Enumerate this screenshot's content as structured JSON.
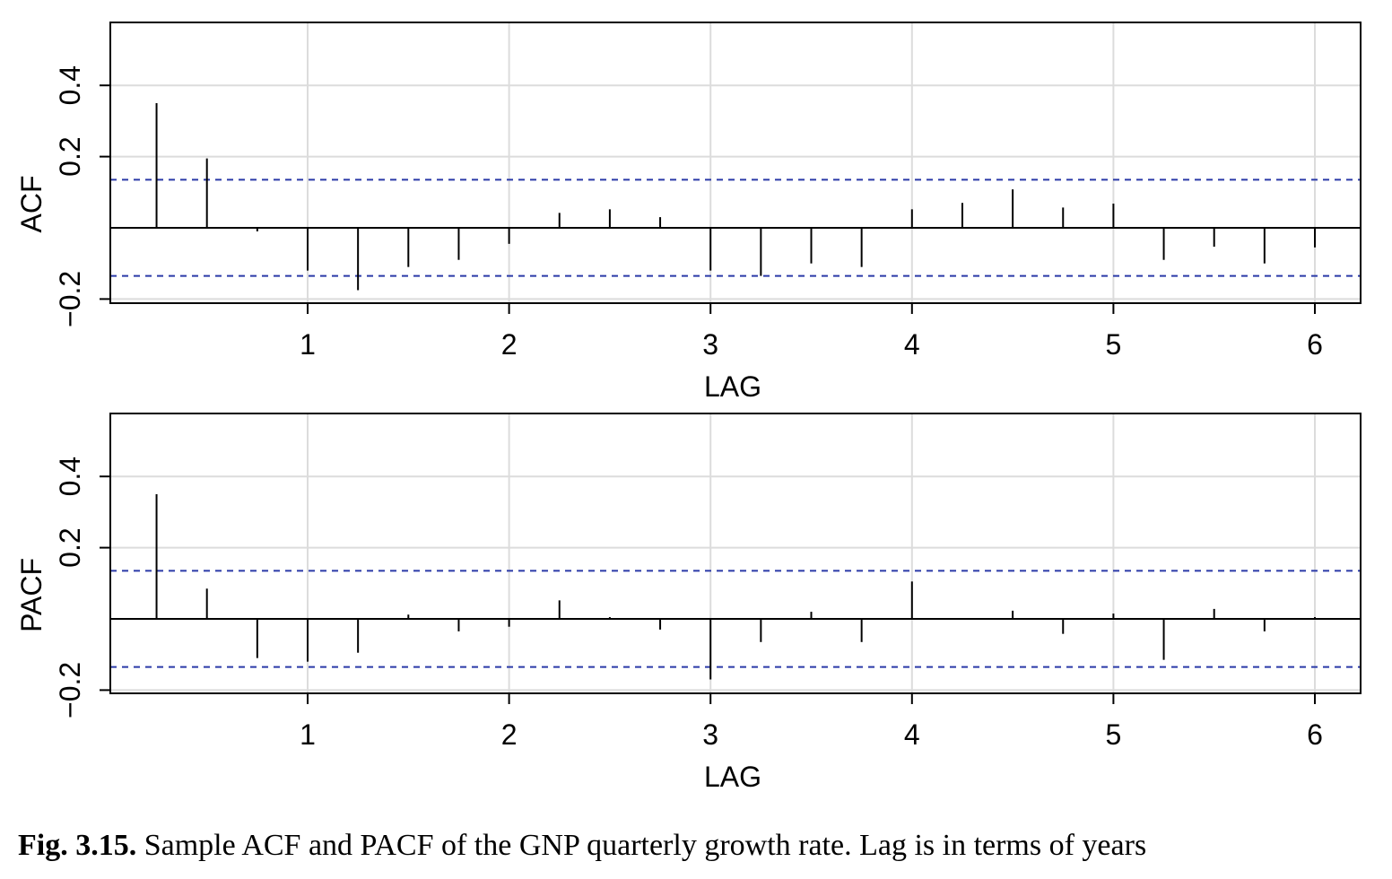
{
  "caption": {
    "label": "Fig. 3.15.",
    "text": "Sample ACF and PACF of the GNP quarterly growth rate. Lag is in terms of years"
  },
  "chart_data": [
    {
      "type": "bar",
      "subtype": "lollipop-spikes",
      "ylabel": "ACF",
      "xlabel": "LAG",
      "xlim": [
        0,
        6.2
      ],
      "ylim": [
        -0.2,
        0.4
      ],
      "x_ticks": [
        1,
        2,
        3,
        4,
        5,
        6
      ],
      "y_ticks": [
        -0.2,
        0.2,
        0.4
      ],
      "y_tick_labels": [
        "−0.2",
        "0.2",
        "0.4"
      ],
      "grid": true,
      "confidence_bound": 0.135,
      "colors": {
        "spike": "#000000",
        "bound": "#2b3aa8",
        "grid": "#dcdcdc"
      },
      "x": [
        0.25,
        0.5,
        0.75,
        1.0,
        1.25,
        1.5,
        1.75,
        2.0,
        2.25,
        2.5,
        2.75,
        3.0,
        3.25,
        3.5,
        3.75,
        4.0,
        4.25,
        4.5,
        4.75,
        5.0,
        5.25,
        5.5,
        5.75,
        6.0
      ],
      "values": [
        0.35,
        0.195,
        -0.01,
        -0.12,
        -0.175,
        -0.11,
        -0.09,
        -0.045,
        0.042,
        0.052,
        0.03,
        -0.12,
        -0.135,
        -0.1,
        -0.11,
        0.052,
        0.07,
        0.108,
        0.057,
        0.068,
        -0.09,
        -0.053,
        -0.1,
        -0.055
      ]
    },
    {
      "type": "bar",
      "subtype": "lollipop-spikes",
      "ylabel": "PACF",
      "xlabel": "LAG",
      "xlim": [
        0,
        6.2
      ],
      "ylim": [
        -0.2,
        0.4
      ],
      "x_ticks": [
        1,
        2,
        3,
        4,
        5,
        6
      ],
      "y_ticks": [
        -0.2,
        0.2,
        0.4
      ],
      "y_tick_labels": [
        "−0.2",
        "0.2",
        "0.4"
      ],
      "grid": true,
      "confidence_bound": 0.135,
      "colors": {
        "spike": "#000000",
        "bound": "#2b3aa8",
        "grid": "#dcdcdc"
      },
      "x": [
        0.25,
        0.5,
        0.75,
        1.0,
        1.25,
        1.5,
        1.75,
        2.0,
        2.25,
        2.5,
        2.75,
        3.0,
        3.25,
        3.5,
        3.75,
        4.0,
        4.25,
        4.5,
        4.75,
        5.0,
        5.25,
        5.5,
        5.75,
        6.0
      ],
      "values": [
        0.35,
        0.085,
        -0.11,
        -0.12,
        -0.095,
        0.012,
        -0.035,
        -0.022,
        0.052,
        0.005,
        -0.03,
        -0.17,
        -0.065,
        0.02,
        -0.065,
        0.105,
        0.0,
        0.023,
        -0.042,
        0.015,
        -0.115,
        0.028,
        -0.035,
        0.005
      ]
    }
  ]
}
